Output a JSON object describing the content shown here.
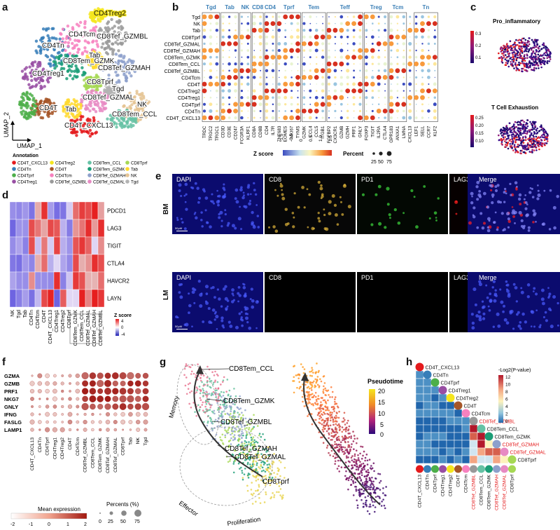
{
  "panel_labels": {
    "a": "a",
    "b": "b",
    "c": "c",
    "d": "d",
    "e": "e",
    "f": "f",
    "g": "g",
    "h": "h"
  },
  "colors": {
    "accent_red": "#e41a1c",
    "heat_low": "#3b4cc0",
    "heat_high": "#d7301f",
    "pseudotime_high": "#f5e61e",
    "pseudotime_low": "#2c0a7a",
    "exhaust_high": "#e41a1c",
    "exhaust_low": "#1b0a6d"
  },
  "panel_a": {
    "axis_x": "UMAP_1",
    "axis_y": "UMAP_2",
    "cluster_labels": [
      {
        "text": "CD4Treg2",
        "color": "#f5e61e"
      },
      {
        "text": "CD4Tcm",
        "color": "#ffffff"
      },
      {
        "text": "CD4Tn",
        "color": "#ffffff"
      },
      {
        "text": "CD8Tef_GZMBL",
        "color": "#ffffff"
      },
      {
        "text": "CD8Tem_GZMK",
        "color": "#ffffff"
      },
      {
        "text": "Tab",
        "color": "#ffffff"
      },
      {
        "text": "CD8Tef_GZMAH",
        "color": "#ffffff"
      },
      {
        "text": "CD4Treg1",
        "color": "#ffffff"
      },
      {
        "text": "CD8Tprf",
        "color": "#ffffff"
      },
      {
        "text": "Tgd",
        "color": "#ffffff"
      },
      {
        "text": "CD8Tef_GZMAL",
        "color": "#ffffff"
      },
      {
        "text": "Tab",
        "color": "#ffffff"
      },
      {
        "text": "NK",
        "color": "#ffffff"
      },
      {
        "text": "CD8Tem_CCL",
        "color": "#ffffff"
      },
      {
        "text": "CD4T",
        "color": "#ffffff"
      },
      {
        "text": "CD4T_CXCL13",
        "color": "#ffffff"
      }
    ],
    "legend_title": "Annotation",
    "legend": [
      {
        "label": "CD4T_CXCL13",
        "color": "#e41a1c"
      },
      {
        "label": "CD4Treg2",
        "color": "#f5e61e"
      },
      {
        "label": "CD8Tem_CCL",
        "color": "#66c2a5"
      },
      {
        "label": "CD8Tprf",
        "color": "#a6d854"
      },
      {
        "label": "CD4Tn",
        "color": "#377eb8"
      },
      {
        "label": "CD4T",
        "color": "#a65628"
      },
      {
        "label": "CD8Tem_GZMK",
        "color": "#1b9e77"
      },
      {
        "label": "Tab",
        "color": "#ffd92f"
      },
      {
        "label": "CD4Tprf",
        "color": "#4daf4a"
      },
      {
        "label": "CD4Tcm",
        "color": "#f781bf"
      },
      {
        "label": "CD8Tef_GZMAH",
        "color": "#8da0cb"
      },
      {
        "label": "NK",
        "color": "#e5c494"
      },
      {
        "label": "CD4Treg1",
        "color": "#984ea3"
      },
      {
        "label": "CD8Tef_GZMBL",
        "color": "#999999"
      },
      {
        "label": "CD8Tef_GZMAL",
        "color": "#e78ac3"
      },
      {
        "label": "Tgd",
        "color": "#b3b3b3"
      }
    ]
  },
  "panel_b": {
    "groups": [
      "Tgd",
      "Tab",
      "NK",
      "CD8",
      "CD4",
      "Tprf",
      "Tem",
      "Teff",
      "Treg",
      "Tcm",
      "Tn"
    ],
    "rows": [
      "Tgd",
      "NK",
      "Tab",
      "CD8Tprf",
      "CD8Tef_GZMAL",
      "CD8Tef_GZMAH",
      "CD8Tem_GZMK",
      "CD8Tem_CCL",
      "CD8Tef_GZMBL",
      "CD4Tcm",
      "CD4T",
      "CD4Treg2",
      "CD4Treg1",
      "CD4Tprf",
      "CD4Tn",
      "CD4T_CXCL13"
    ],
    "genes": [
      "TRDC",
      "TRGC2",
      "TRGC1",
      "CD3D",
      "CD3E",
      "CD247",
      "FCGR3A",
      "KLRF1",
      "CD8A",
      "CD8B",
      "CD4",
      "IL7R",
      "ZNF683",
      "EOMES",
      "MKI67",
      "TYMS",
      "GZMK",
      "CCL4",
      "CCL5",
      "ITGB1",
      "FGFBP2",
      "CX3CR1",
      "GZMB",
      "GZMH",
      "PRF1",
      "GNLY",
      "FOXP3",
      "TIGIT",
      "IL2RA",
      "CTLA4",
      "GPR183",
      "ANXA1",
      "LMNA",
      "CXCL13",
      "LEF1",
      "SELL",
      "CCR7",
      "KLF2"
    ],
    "colorbar_title": "Z score",
    "colorbar_ticks": [
      "-1.0",
      "-0.5",
      "0",
      "0.5",
      "1.0",
      "1.5"
    ],
    "size_title": "Percent",
    "size_ticks": [
      "25",
      "50",
      "75"
    ]
  },
  "panel_c": {
    "title1": "Pro_inflammatory",
    "ticks1": [
      "0.3",
      "0.2",
      "0.1"
    ],
    "title2": "T Cell Exhaustion",
    "ticks2": [
      "0.25",
      "0.20",
      "0.15",
      "0.10"
    ]
  },
  "panel_d": {
    "genes": [
      "PDCD1",
      "LAG3",
      "TIGIT",
      "CTLA4",
      "HAVCR2",
      "LAYN"
    ],
    "columns": [
      "NK",
      "Tgd",
      "Tab",
      "CD4Tn",
      "CD4Tcm",
      "CD4T",
      "CD4T_CXCL13",
      "CD4Treg1",
      "CD4Treg2",
      "CD8Tprf",
      "CD8Tem_GZMK",
      "CD8Tem_CCL",
      "CD8Tef_GZMAL",
      "CD8Tef_GZMAH",
      "CD8Tef_GZMBL"
    ],
    "zscore_title": "Z score",
    "zscore_ticks": [
      "4",
      "0",
      "-4"
    ]
  },
  "panel_e": {
    "channels": [
      "DAPI",
      "CD8",
      "PD1",
      "LAG3",
      "Merge"
    ],
    "rows": [
      "BM",
      "LM"
    ],
    "scale_bar": "50μM"
  },
  "panel_f": {
    "genes": [
      "GZMA",
      "GZMB",
      "PRF1",
      "NKG7",
      "GNLY",
      "IFNG",
      "FASLG",
      "LAMP1"
    ],
    "columns": [
      "CD4T_CXCL13",
      "CD4Tn",
      "CD4Tprf",
      "CD4Treg1",
      "CD4Treg2",
      "CD4T",
      "CD4Tcm",
      "CD8Tef_GZMBL",
      "CD8Tem_CCL",
      "CD8Tem_GZMK",
      "CD8Tef_GZMAH",
      "CD8Tef_GZMAL",
      "CD8Tprf",
      "Tab",
      "NK",
      "Tgd"
    ],
    "mean_title": "Mean expression",
    "mean_ticks": [
      "-2",
      "-1",
      "0",
      "1",
      "2"
    ],
    "pct_title": "Percents (%)",
    "pct_ticks": [
      "0",
      "25",
      "50",
      "75"
    ]
  },
  "panel_g": {
    "labels": [
      "CD8Tem_CCL",
      "CD8Tem_GZMK",
      "CD8Tef_GZMBL",
      "CD8Tef_GZMAH",
      "CD8Tef_GZMAL",
      "CD8Tprf"
    ],
    "states": [
      "Memory",
      "Effector",
      "Proliferation"
    ],
    "pseudo_title": "Pseudotime",
    "pseudo_ticks": [
      "20",
      "15",
      "10",
      "5",
      "0"
    ]
  },
  "panel_h": {
    "items": [
      "CD4T_CXCL13",
      "CD4Tn",
      "CD4Tprf",
      "CD4Treg1",
      "CD4Treg2",
      "CD4T",
      "CD4Tcm",
      "CD8Tef_GZMBL",
      "CD8Tem_CCL",
      "CD8Tem_GZMK",
      "CD8Tef_GZMAH",
      "CD8Tef_GZMAL",
      "CD8Tprf"
    ],
    "highlight": [
      "CD8Tef_GZMBL",
      "CD8Tef_GZMAH",
      "CD8Tef_GZMAL"
    ],
    "colorbar_title": "-Log2(P-value)",
    "colorbar_ticks": [
      "12",
      "10",
      "8",
      "6",
      "4",
      "2",
      "0"
    ]
  }
}
